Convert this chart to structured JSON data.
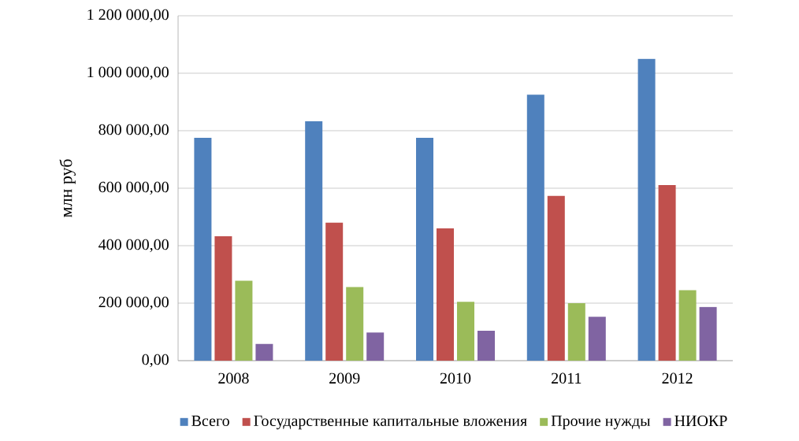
{
  "chart_data": {
    "type": "bar",
    "ylabel": "млн руб",
    "categories": [
      "2008",
      "2009",
      "2010",
      "2011",
      "2012"
    ],
    "series": [
      {
        "name": "Всего",
        "color": "#4f81bd",
        "values": [
          775000,
          833000,
          775000,
          925000,
          1050000
        ]
      },
      {
        "name": "Государственные капитальные вложения",
        "color": "#c0504d",
        "values": [
          433000,
          480000,
          460000,
          573000,
          611000
        ]
      },
      {
        "name": "Прочие нужды",
        "color": "#9bbb59",
        "values": [
          278000,
          256000,
          205000,
          200000,
          245000
        ]
      },
      {
        "name": "НИОКР",
        "color": "#8064a2",
        "values": [
          58000,
          98000,
          104000,
          153000,
          187000
        ]
      }
    ],
    "ylim": [
      0,
      1200000
    ],
    "yticks": [
      {
        "value": 0,
        "label": "0,00"
      },
      {
        "value": 200000,
        "label": "200 000,00"
      },
      {
        "value": 400000,
        "label": "400 000,00"
      },
      {
        "value": 600000,
        "label": "600 000,00"
      },
      {
        "value": 800000,
        "label": "800 000,00"
      },
      {
        "value": 1000000,
        "label": "1 000 000,00"
      },
      {
        "value": 1200000,
        "label": "1 200 000,00"
      }
    ],
    "grid": "y",
    "legend": "bottom"
  }
}
